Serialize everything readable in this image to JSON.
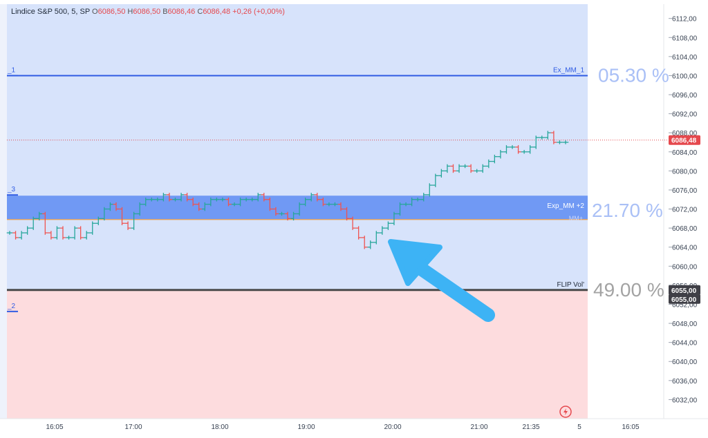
{
  "legend": {
    "symbol": "Lindice S&P 500, 5, SP",
    "open_label": "O",
    "open_value": "6086,50",
    "high_label": "H",
    "high_value": "6086,50",
    "low_label": "B",
    "low_value": "6086,46",
    "close_label": "C",
    "close_value": "6086,48",
    "change": "+0,26 (+0,00%)"
  },
  "levels": {
    "ex_mm_1": {
      "name": "Ex_MM_1",
      "pct": "05.30 %",
      "value": 6100.0
    },
    "exp_mm_2": {
      "name": "Exp_MM +2",
      "pct": "21.70 %",
      "upper": 6074.8,
      "lower": 6069.8
    },
    "mm_plus": {
      "name": "MM+"
    },
    "flip_vol": {
      "name": "FLIP Vol'",
      "pct": "49.00 %",
      "value": 6055.0
    },
    "left_markers": [
      "_1",
      "_3",
      "_2"
    ]
  },
  "price_tags": {
    "last": {
      "label": "6086,48",
      "value": 6086.48,
      "color": "#e5484d"
    },
    "flip_a": {
      "label": "6055,00",
      "value": 6055.0
    },
    "flip_b": {
      "label": "6055,00"
    }
  },
  "annotation": {
    "type": "arrow",
    "color": "#3db3f5"
  },
  "watermark_icon": "lightning-icon",
  "colors": {
    "up": "#26a69a",
    "down": "#ef5350",
    "zone_above": "#d7e3fb",
    "zone_below": "#fddcde",
    "band": "#5e8cf2",
    "ex_line": "#2f5be3",
    "flip_line": "#4a4a4a"
  },
  "chart_data": {
    "type": "line",
    "title": "Lindice S&P 500, 5, SP",
    "xlabel": "",
    "ylabel": "",
    "x_ticks": [
      "16:05",
      "17:00",
      "18:00",
      "19:00",
      "20:00",
      "21:00",
      "21:35",
      "5",
      "16:05"
    ],
    "y_ticks": [
      "6112,00",
      "6108,00",
      "6104,00",
      "6100,00",
      "6096,00",
      "6092,00",
      "6088,00",
      "6084,00",
      "6080,00",
      "6076,00",
      "6072,00",
      "6068,00",
      "6064,00",
      "6060,00",
      "6056,00",
      "6052,00",
      "6048,00",
      "6044,00",
      "6040,00",
      "6036,00",
      "6032,00"
    ],
    "ylim": [
      6028,
      6115
    ],
    "series": [
      {
        "style": "step",
        "values": [
          6067,
          6066,
          6067,
          6068,
          6070,
          6071,
          6067,
          6066,
          6068,
          6066,
          6066,
          6068,
          6066,
          6067,
          6069,
          6070,
          6072,
          6073,
          6072,
          6069,
          6068,
          6071,
          6073,
          6074,
          6074,
          6074,
          6075,
          6074,
          6074,
          6075,
          6074,
          6073,
          6072,
          6073,
          6074,
          6074,
          6074,
          6073,
          6073,
          6074,
          6074,
          6074,
          6075,
          6074,
          6072,
          6071,
          6071,
          6070,
          6071,
          6073,
          6074,
          6075,
          6074,
          6073,
          6073,
          6073,
          6072,
          6070,
          6068,
          6066,
          6064,
          6065,
          6067,
          6068,
          6069,
          6071,
          6073,
          6073,
          6074,
          6074,
          6075,
          6077,
          6079,
          6080,
          6081,
          6080,
          6081,
          6081,
          6080,
          6080,
          6081,
          6082,
          6083,
          6084,
          6085,
          6085,
          6084,
          6084,
          6085,
          6087,
          6087,
          6088,
          6086,
          6086,
          6086
        ]
      }
    ],
    "grid": false,
    "legend_position": "top-left"
  }
}
